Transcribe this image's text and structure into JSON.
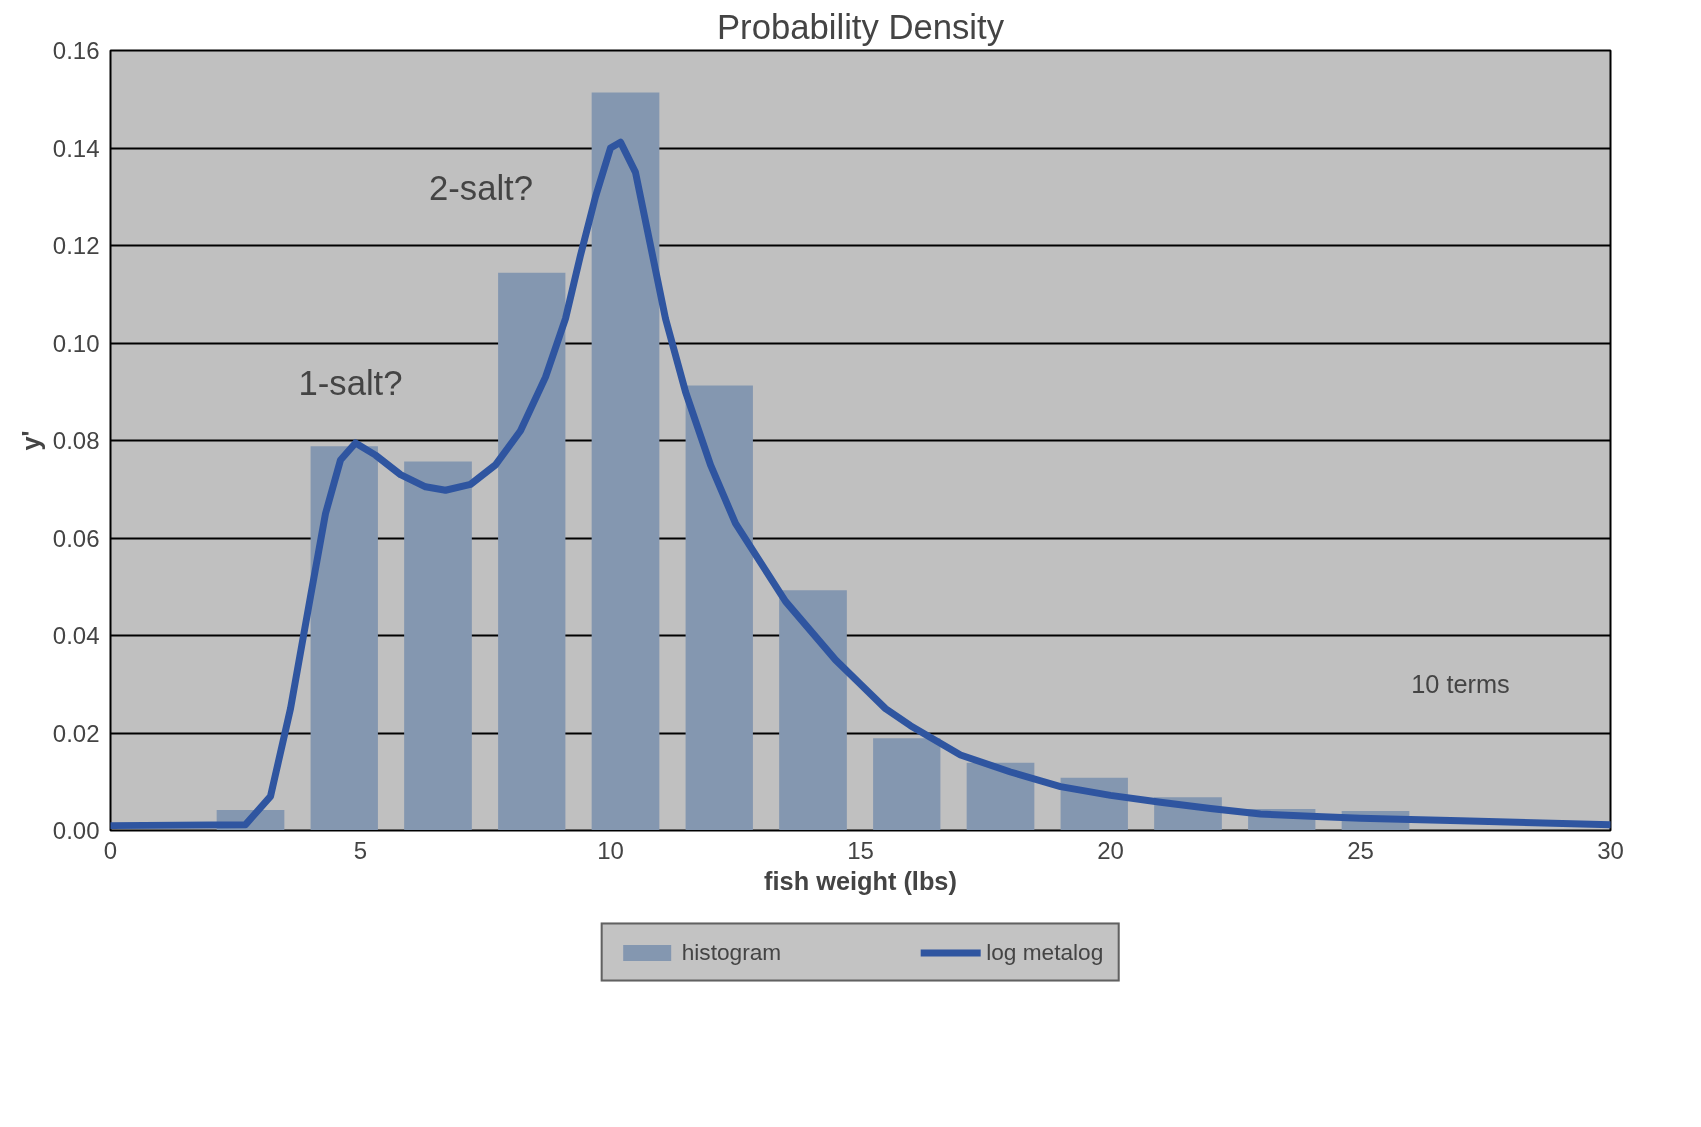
{
  "chart_data": {
    "type": "histogram",
    "title": "Probability Density",
    "xlabel": "fish weight (lbs)",
    "ylabel": "y'",
    "xlim": [
      0,
      30
    ],
    "xticks": [
      0,
      5,
      10,
      15,
      20,
      25,
      30
    ],
    "ylim": [
      0,
      0.16
    ],
    "yticks": [
      {
        "value": 0,
        "label": "0.00"
      },
      {
        "value": 0.02,
        "label": "0.02"
      },
      {
        "value": 0.04,
        "label": "0.04"
      },
      {
        "value": 0.06,
        "label": "0.06"
      },
      {
        "value": 0.08,
        "label": "0.08"
      },
      {
        "value": 0.1,
        "label": "0.10"
      },
      {
        "value": 0.12,
        "label": "0.12"
      },
      {
        "value": 0.14,
        "label": "0.14"
      },
      {
        "value": 0.16,
        "label": "0.16"
      }
    ],
    "grid": "y",
    "legend": "bottom",
    "series": [
      {
        "name": "histogram",
        "color": "#8497b0",
        "bins": [
          1.86,
          3.74,
          5.61,
          7.49,
          9.36,
          11.24,
          13.11,
          14.99,
          16.86,
          18.74,
          20.61,
          22.49,
          24.36,
          26.24
        ],
        "values": [
          0.0042,
          0.0788,
          0.0757,
          0.1144,
          0.1514,
          0.0913,
          0.0493,
          0.0189,
          0.0139,
          0.0108,
          0.0068,
          0.0044,
          0.004
        ]
      },
      {
        "name": "log metalog",
        "type": "line",
        "color": "#2f55a0",
        "x": [
          0,
          2.7,
          3.2,
          3.6,
          4.0,
          4.3,
          4.6,
          4.9,
          5.3,
          5.8,
          6.3,
          6.7,
          7.2,
          7.7,
          8.2,
          8.7,
          9.1,
          9.4,
          9.7,
          10.0,
          10.2,
          10.5,
          10.8,
          11.1,
          11.5,
          12.0,
          12.5,
          13.0,
          13.5,
          14.0,
          14.5,
          15.0,
          15.5,
          16.0,
          17.0,
          18.0,
          19.0,
          20.0,
          21.0,
          22.0,
          23.0,
          24.0,
          25.0,
          27.0,
          30.0
        ],
        "values": [
          0.001,
          0.0012,
          0.007,
          0.025,
          0.048,
          0.065,
          0.076,
          0.0795,
          0.077,
          0.073,
          0.0705,
          0.0698,
          0.071,
          0.075,
          0.082,
          0.093,
          0.105,
          0.118,
          0.13,
          0.14,
          0.1412,
          0.135,
          0.12,
          0.105,
          0.09,
          0.075,
          0.063,
          0.055,
          0.047,
          0.041,
          0.035,
          0.03,
          0.025,
          0.0215,
          0.0155,
          0.012,
          0.009,
          0.0072,
          0.0058,
          0.0045,
          0.0034,
          0.0029,
          0.0025,
          0.002,
          0.0012
        ]
      }
    ],
    "annotations": [
      "1-salt?",
      "2-salt?",
      "10 terms"
    ]
  }
}
